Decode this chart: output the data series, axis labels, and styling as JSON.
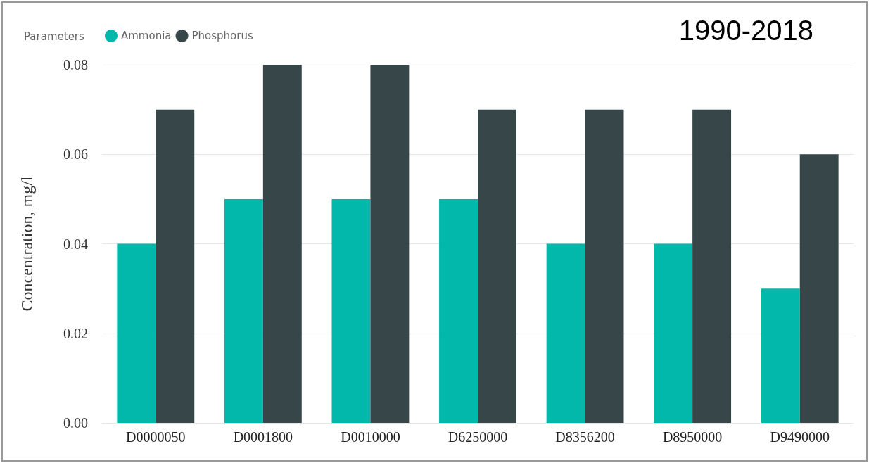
{
  "chart_data": {
    "type": "bar",
    "title": "1990-2018",
    "ylabel": "Concentration, mg/l",
    "legend_title": "Parameters",
    "legend": "top left",
    "grid": "y",
    "categories": [
      "D0000050",
      "D0001800",
      "D0010000",
      "D6250000",
      "D8356200",
      "D8950000",
      "D9490000"
    ],
    "series": [
      {
        "name": "Ammonia",
        "color": "#01b8aa",
        "values": [
          0.04,
          0.05,
          0.05,
          0.05,
          0.04,
          0.04,
          0.03
        ]
      },
      {
        "name": "Phosphorus",
        "color": "#374649",
        "values": [
          0.07,
          0.08,
          0.08,
          0.07,
          0.07,
          0.07,
          0.06
        ]
      }
    ],
    "ylim": [
      0,
      0.08
    ],
    "yticks": [
      {
        "value": 0,
        "label": "0.00"
      },
      {
        "value": 0.02,
        "label": "0.02"
      },
      {
        "value": 0.04,
        "label": "0.04"
      },
      {
        "value": 0.06,
        "label": "0.06"
      },
      {
        "value": 0.08,
        "label": "0.08"
      }
    ]
  }
}
